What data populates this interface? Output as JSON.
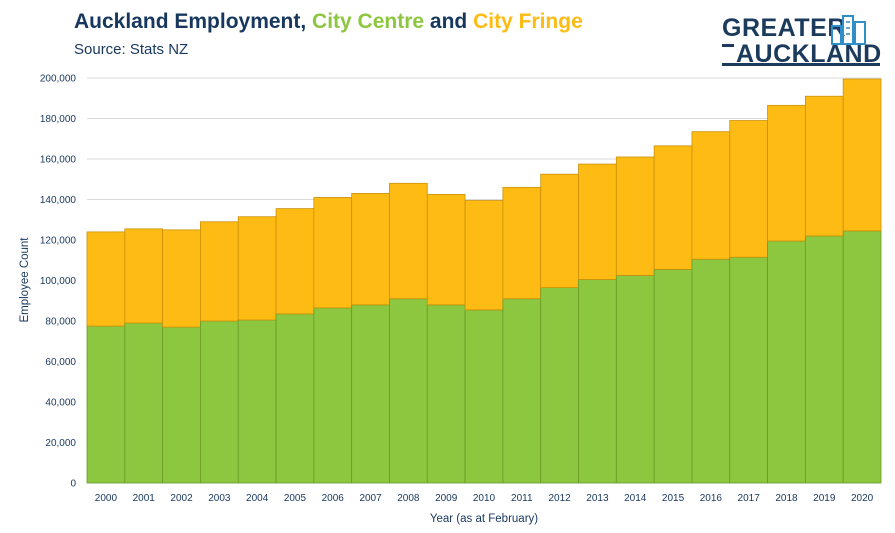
{
  "header": {
    "title_parts": {
      "part1": "Auckland Employment, ",
      "part2": "City Centre",
      "part3": " and ",
      "part4": "City Fringe"
    },
    "subtitle": "Source: Stats NZ"
  },
  "logo": {
    "line1": "GREATER",
    "line2": "AUCKLAND"
  },
  "colors": {
    "title": "#17375e",
    "city_centre": "#8dc63f",
    "city_fringe": "#fdbb13",
    "city_centre_edge": "#6a9a2a",
    "city_fringe_edge": "#c9910a",
    "grid": "#d9d9d9"
  },
  "chart_data": {
    "type": "bar",
    "stacked": true,
    "xlabel": "Year (as at February)",
    "ylabel": "Employee Count",
    "ylim": [
      0,
      200000
    ],
    "yticks": [
      0,
      20000,
      40000,
      60000,
      80000,
      100000,
      120000,
      140000,
      160000,
      180000,
      200000
    ],
    "ytick_labels": [
      "0",
      "20,000",
      "40,000",
      "60,000",
      "80,000",
      "100,000",
      "120,000",
      "140,000",
      "160,000",
      "180,000",
      "200,000"
    ],
    "grid": true,
    "categories": [
      "2000",
      "2001",
      "2002",
      "2003",
      "2004",
      "2005",
      "2006",
      "2007",
      "2008",
      "2009",
      "2010",
      "2011",
      "2012",
      "2013",
      "2014",
      "2015",
      "2016",
      "2017",
      "2018",
      "2019",
      "2020"
    ],
    "series": [
      {
        "name": "City Centre",
        "values": [
          77500,
          79000,
          77000,
          80000,
          80500,
          83500,
          86500,
          88000,
          91000,
          88000,
          85500,
          91000,
          96500,
          100500,
          102500,
          105500,
          110500,
          111500,
          119500,
          122000,
          124500
        ]
      },
      {
        "name": "City Fringe",
        "values": [
          46500,
          46500,
          48000,
          49000,
          51000,
          52000,
          54500,
          55000,
          57000,
          54500,
          54000,
          55000,
          56000,
          57000,
          58500,
          61000,
          63000,
          67500,
          67000,
          69000,
          75000
        ]
      }
    ]
  }
}
